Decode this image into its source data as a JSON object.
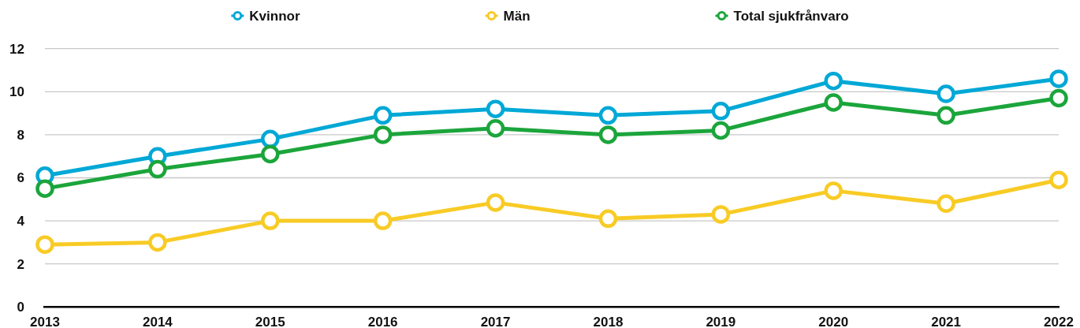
{
  "chart_data": {
    "type": "line",
    "categories": [
      "2013",
      "2014",
      "2015",
      "2016",
      "2017",
      "2018",
      "2019",
      "2020",
      "2021",
      "2022"
    ],
    "series": [
      {
        "name": "Kvinnor",
        "color": "#00a8d6",
        "values": [
          6.1,
          7.0,
          7.8,
          8.9,
          9.2,
          8.9,
          9.1,
          10.5,
          9.9,
          10.6
        ]
      },
      {
        "name": "Män",
        "color": "#f8cb25",
        "values": [
          2.9,
          3.0,
          4.0,
          4.0,
          4.85,
          4.1,
          4.3,
          5.4,
          4.8,
          5.9
        ]
      },
      {
        "name": "Total sjukfrånvaro",
        "color": "#1ba53b",
        "values": [
          5.5,
          6.4,
          7.1,
          8.0,
          8.3,
          8.0,
          8.2,
          9.5,
          8.9,
          9.7
        ]
      }
    ],
    "ylim": [
      0,
      12
    ],
    "yticks": [
      0,
      2,
      4,
      6,
      8,
      10,
      12
    ],
    "grid": "y",
    "legend": "top",
    "marker": "circle",
    "line_style": "solid"
  }
}
